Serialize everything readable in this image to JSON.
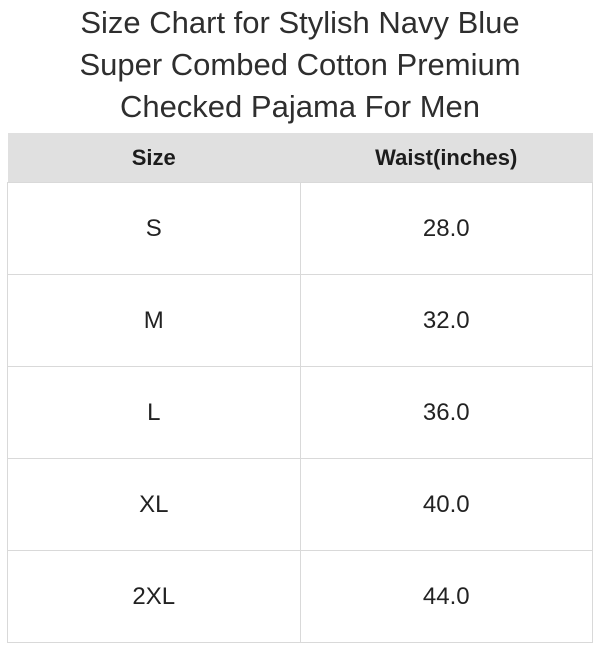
{
  "title": {
    "lines": [
      "Size Chart for Stylish Navy Blue",
      "Super Combed Cotton Premium",
      "Checked Pajama For Men"
    ]
  },
  "chart_data": {
    "type": "table",
    "title": "Size Chart for Stylish Navy Blue Super Combed Cotton Premium Checked Pajama For Men",
    "columns": [
      "Size",
      "Waist(inches)"
    ],
    "rows": [
      [
        "S",
        "28.0"
      ],
      [
        "M",
        "32.0"
      ],
      [
        "L",
        "36.0"
      ],
      [
        "XL",
        "40.0"
      ],
      [
        "2XL",
        "44.0"
      ]
    ],
    "waist_values_inches": [
      28.0,
      32.0,
      36.0,
      40.0,
      44.0
    ]
  },
  "colors": {
    "header_background": "#e0e0e0",
    "cell_border": "#d9d9d9",
    "title_text": "#2e2e2e",
    "body_text": "#222222"
  }
}
